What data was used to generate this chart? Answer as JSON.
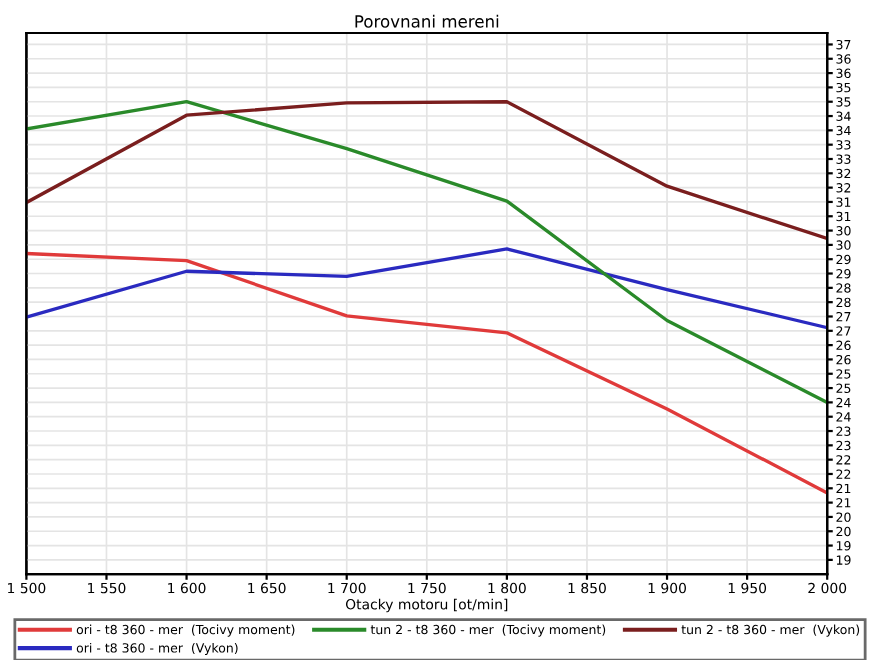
{
  "chart_data": {
    "type": "line",
    "title": "Porovnani mereni",
    "xlabel": "Otacky motoru [ot/min]",
    "x": [
      1500,
      1600,
      1700,
      1800,
      1900,
      2000
    ],
    "xlim": [
      1500,
      2000
    ],
    "xticks": [
      {
        "value": 1500,
        "label": "1 500"
      },
      {
        "value": 1550,
        "label": "1 550"
      },
      {
        "value": 1600,
        "label": "1 600"
      },
      {
        "value": 1650,
        "label": "1 650"
      },
      {
        "value": 1700,
        "label": "1 700"
      },
      {
        "value": 1750,
        "label": "1 750"
      },
      {
        "value": 1800,
        "label": "1 800"
      },
      {
        "value": 1850,
        "label": "1 850"
      },
      {
        "value": 1900,
        "label": "1 900"
      },
      {
        "value": 1950,
        "label": "1 950"
      },
      {
        "value": 2000,
        "label": "2 000"
      }
    ],
    "y2lim": [
      18.5,
      37.4
    ],
    "y2ticks": [
      {
        "value": 37,
        "label": "37"
      },
      {
        "value": 36.5,
        "label": "36"
      },
      {
        "value": 36,
        "label": "36"
      },
      {
        "value": 35.5,
        "label": "35"
      },
      {
        "value": 35,
        "label": "35"
      },
      {
        "value": 34.5,
        "label": "34"
      },
      {
        "value": 34,
        "label": "34"
      },
      {
        "value": 33.5,
        "label": "33"
      },
      {
        "value": 33,
        "label": "33"
      },
      {
        "value": 32.5,
        "label": "32"
      },
      {
        "value": 32,
        "label": "32"
      },
      {
        "value": 31.5,
        "label": "31"
      },
      {
        "value": 31,
        "label": "31"
      },
      {
        "value": 30.5,
        "label": "30"
      },
      {
        "value": 30,
        "label": "30"
      },
      {
        "value": 29.5,
        "label": "29"
      },
      {
        "value": 29,
        "label": "29"
      },
      {
        "value": 28.5,
        "label": "28"
      },
      {
        "value": 28,
        "label": "28"
      },
      {
        "value": 27.5,
        "label": "27"
      },
      {
        "value": 27,
        "label": "27"
      },
      {
        "value": 26.5,
        "label": "26"
      },
      {
        "value": 26,
        "label": "26"
      },
      {
        "value": 25.5,
        "label": "25"
      },
      {
        "value": 25,
        "label": "25"
      },
      {
        "value": 24.5,
        "label": "24"
      },
      {
        "value": 24,
        "label": "24"
      },
      {
        "value": 23.5,
        "label": "23"
      },
      {
        "value": 23,
        "label": "23"
      },
      {
        "value": 22.5,
        "label": "22"
      },
      {
        "value": 22,
        "label": "22"
      },
      {
        "value": 21.5,
        "label": "21"
      },
      {
        "value": 21,
        "label": "21"
      },
      {
        "value": 20.5,
        "label": "20"
      },
      {
        "value": 20,
        "label": "20"
      },
      {
        "value": 19.5,
        "label": "19"
      },
      {
        "value": 19,
        "label": "19"
      }
    ],
    "grid": true,
    "legend": "bottom",
    "marker": "none",
    "line_style": "solid",
    "series": [
      {
        "name": "ori - t8 360 - mer  (Tocivy moment)",
        "color": "#e03a3a",
        "axis": "y2",
        "values": [
          29.7,
          29.45,
          27.52,
          26.93,
          24.27,
          21.34
        ]
      },
      {
        "name": "ori - t8 360 - mer  (Vykon)",
        "color": "#2a2ac0",
        "axis": "y2",
        "values": [
          27.48,
          29.08,
          28.9,
          29.86,
          28.44,
          27.11
        ]
      },
      {
        "name": "tun 2 - t8 360 - mer  (Tocivy moment)",
        "color": "#2a8a2a",
        "axis": "y2",
        "values": [
          34.05,
          35.0,
          33.36,
          31.53,
          27.36,
          24.5
        ]
      },
      {
        "name": "tun 2 - t8 360 - mer  (Vykon)",
        "color": "#7a1e1e",
        "axis": "y2",
        "values": [
          31.48,
          34.53,
          34.96,
          35.0,
          32.05,
          30.22
        ]
      }
    ]
  }
}
